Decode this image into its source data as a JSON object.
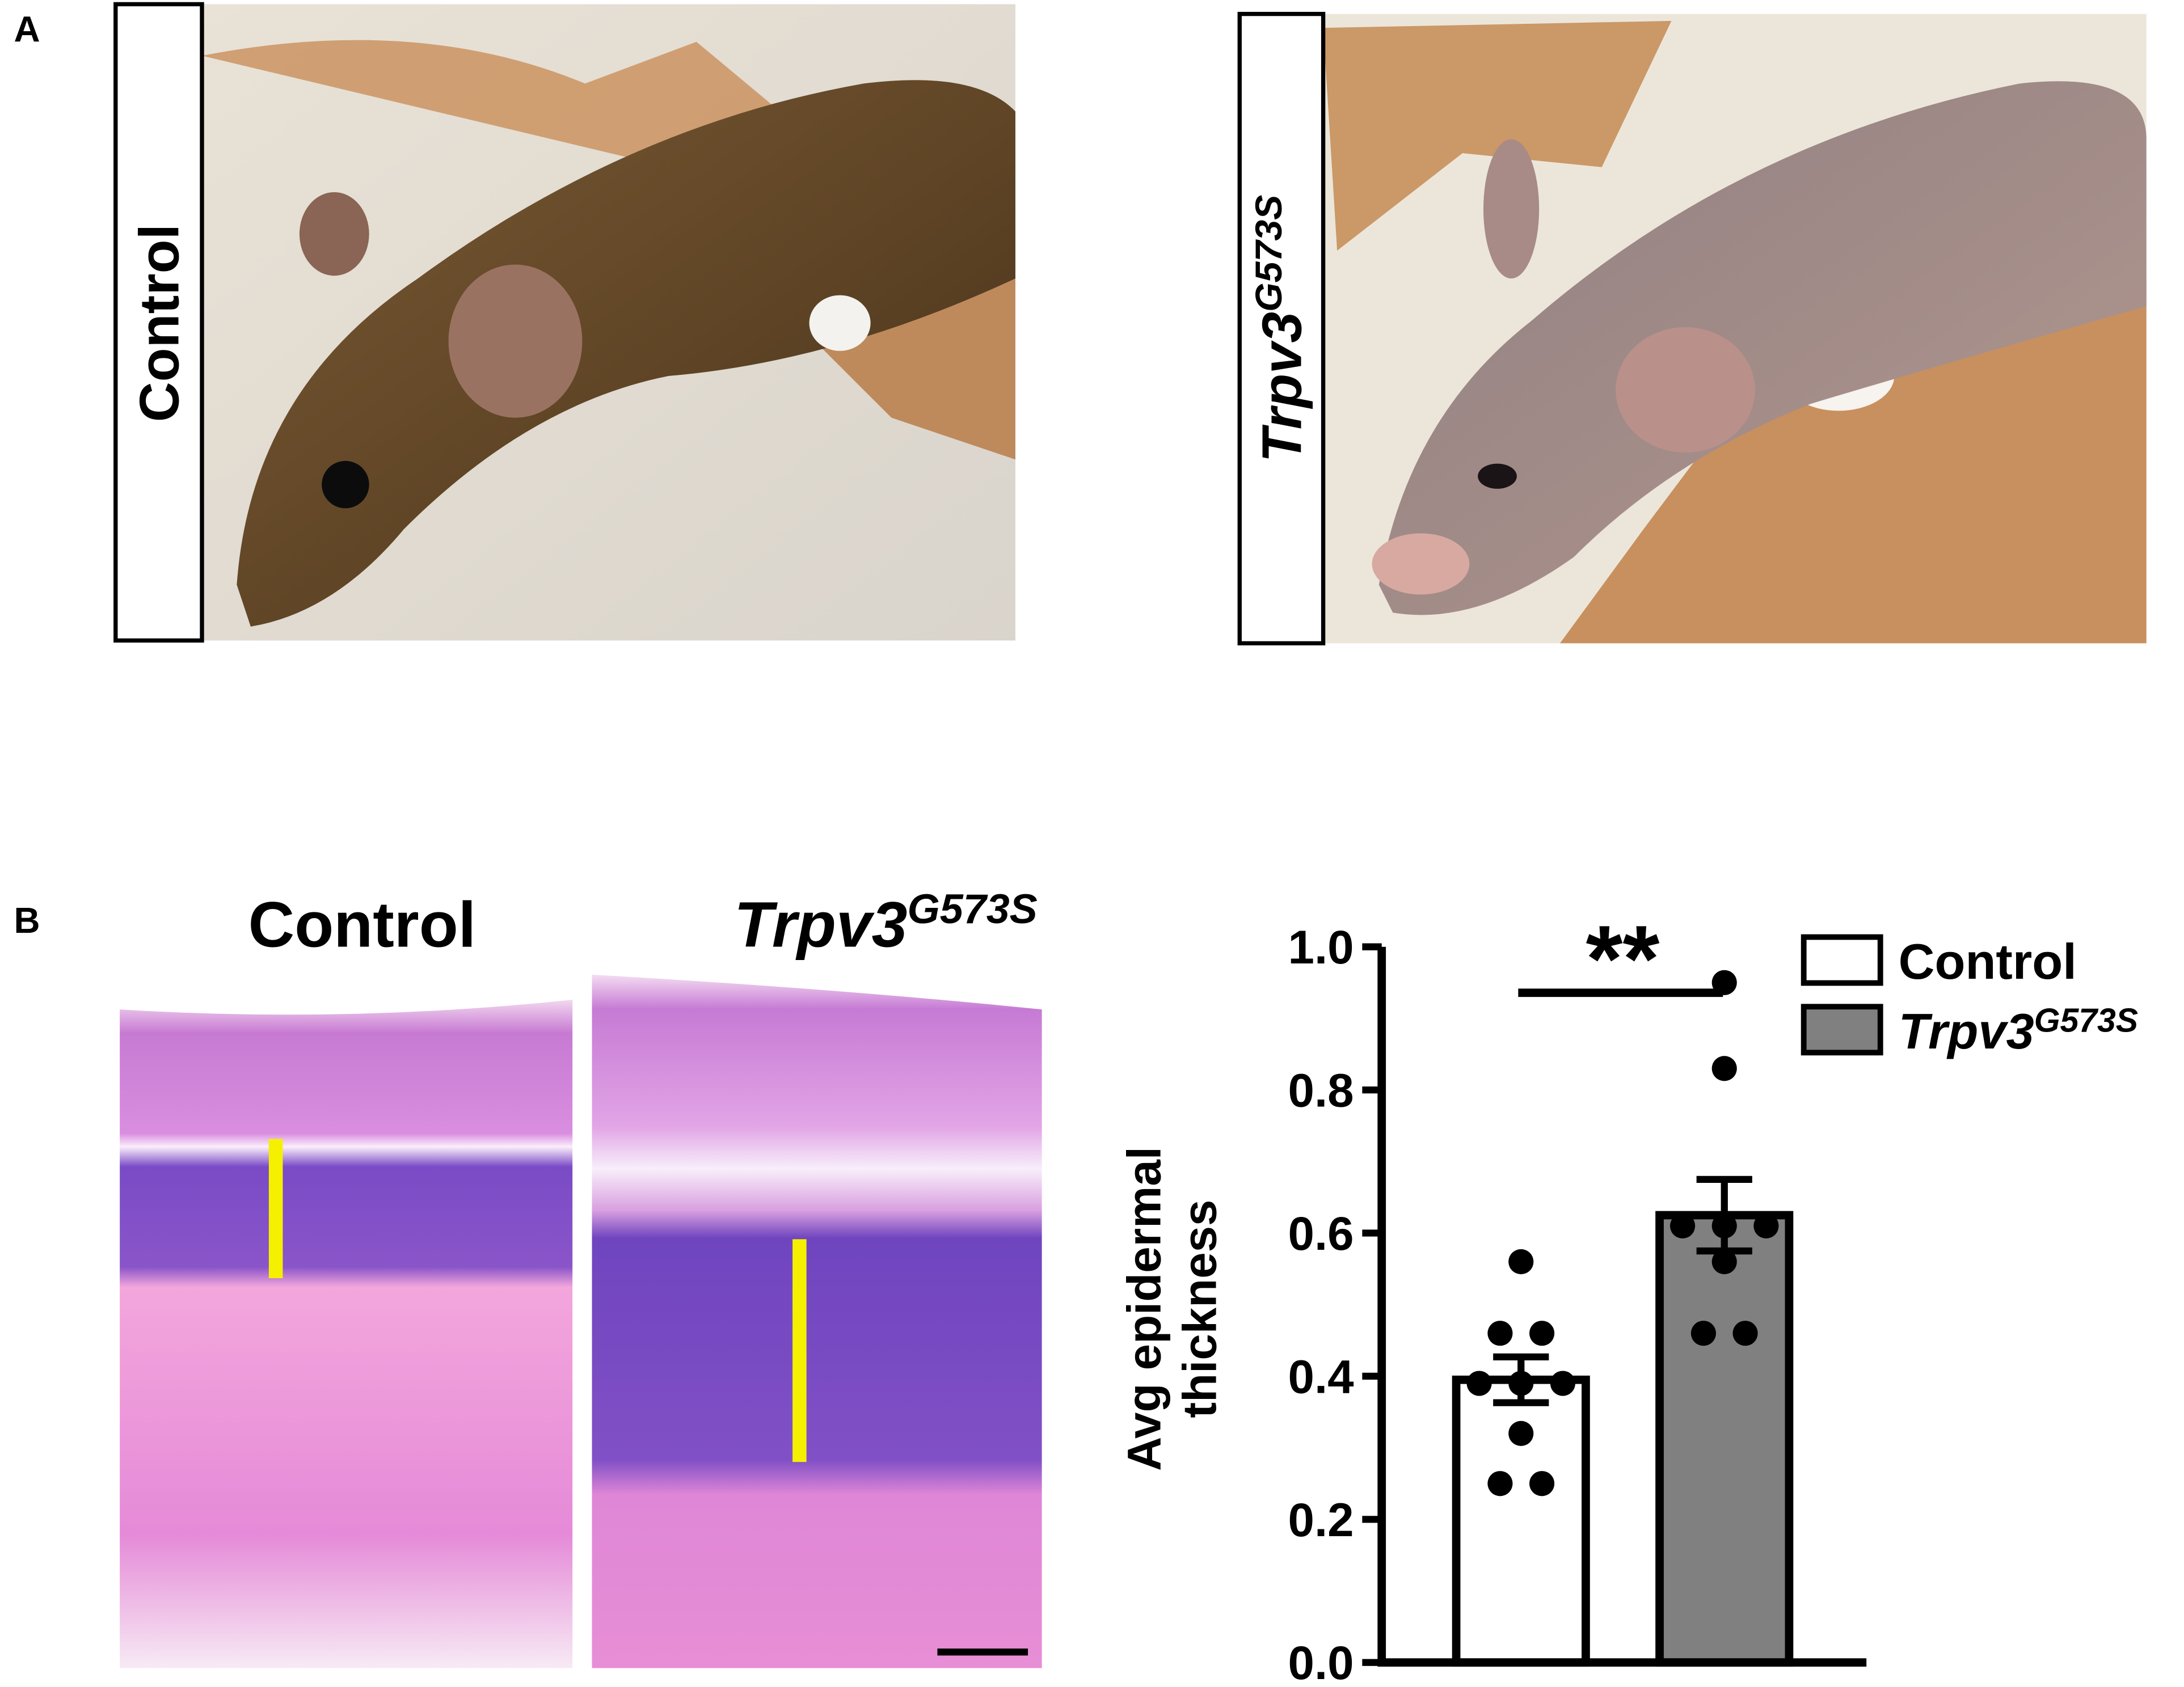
{
  "panel_a": {
    "label": "A",
    "photos": [
      {
        "label": "Control"
      },
      {
        "label": "Trpv3",
        "label_sup": "G573S"
      }
    ]
  },
  "panel_b": {
    "label": "B",
    "histology": [
      {
        "title": "Control"
      },
      {
        "title": "Trpv3",
        "title_sup": "G573S"
      }
    ]
  },
  "chart_data": {
    "type": "bar",
    "y_label": [
      "Avg epidermal",
      "thickness"
    ],
    "ylim": [
      0,
      1.0
    ],
    "yticks": [
      {
        "value": 0,
        "label": "0.0"
      },
      {
        "value": 0.2,
        "label": "0.2"
      },
      {
        "value": 0.4,
        "label": "0.4"
      },
      {
        "value": 0.6,
        "label": "0.6"
      },
      {
        "value": 0.8,
        "label": "0.8"
      },
      {
        "value": 1.0,
        "label": "1.0"
      }
    ],
    "significance": "**",
    "series": [
      {
        "name": "Control",
        "color": "#ffffff",
        "value": 0.395,
        "error": 0.032,
        "points": [
          0.56,
          0.46,
          0.46,
          0.39,
          0.39,
          0.39,
          0.32,
          0.25,
          0.25
        ]
      },
      {
        "name": "Trpv3",
        "name_sup": "G573S",
        "color": "#808080",
        "value": 0.625,
        "error": 0.05,
        "points": [
          0.95,
          0.83,
          0.61,
          0.61,
          0.61,
          0.56,
          0.46,
          0.46
        ]
      }
    ]
  }
}
